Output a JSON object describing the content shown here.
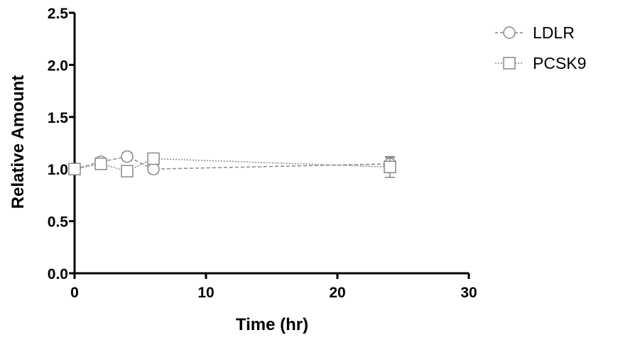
{
  "chart_data": {
    "type": "line",
    "title": "",
    "xlabel": "Time (hr)",
    "ylabel": "Relative Amount",
    "xlim": [
      0,
      30
    ],
    "ylim": [
      0,
      2.5
    ],
    "xticks": [
      0,
      10,
      20,
      30
    ],
    "yticks": [
      0.0,
      0.5,
      1.0,
      1.5,
      2.0,
      2.5
    ],
    "xtick_labels": [
      "0",
      "10",
      "20",
      "30"
    ],
    "ytick_labels": [
      "0.0",
      "0.5",
      "1.0",
      "1.5",
      "2.0",
      "2.5"
    ],
    "grid": false,
    "legend_position": "top-right",
    "series": [
      {
        "name": "LDLR",
        "marker": "circle",
        "color": "#888888",
        "dash": "dashed",
        "x": [
          0,
          2,
          4,
          6,
          24
        ],
        "y": [
          1.0,
          1.07,
          1.12,
          1.0,
          1.05
        ],
        "err": [
          0.02,
          0.03,
          0.04,
          0.04,
          0.06
        ]
      },
      {
        "name": "PCSK9",
        "marker": "square",
        "color": "#888888",
        "dash": "dotted",
        "x": [
          0,
          2,
          4,
          6,
          24
        ],
        "y": [
          1.0,
          1.05,
          0.98,
          1.1,
          1.02
        ],
        "err": [
          0.02,
          0.04,
          0.05,
          0.05,
          0.1
        ]
      }
    ]
  }
}
